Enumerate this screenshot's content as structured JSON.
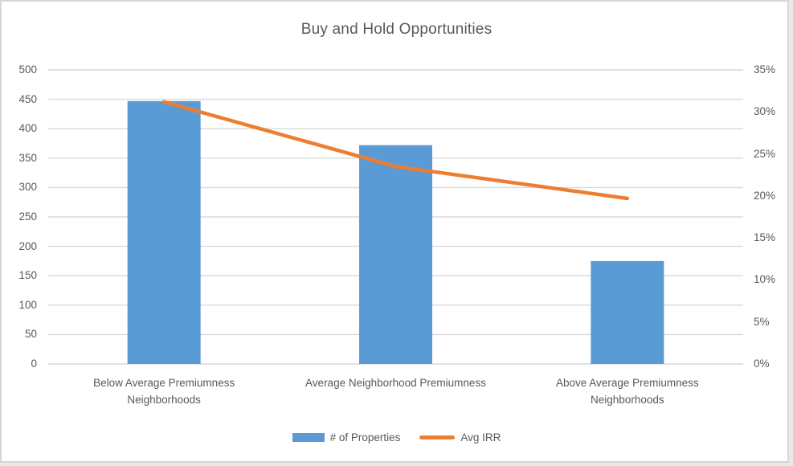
{
  "chart_data": {
    "type": "combo-bar-line",
    "title": "Buy and Hold Opportunities",
    "categories": [
      {
        "label": "Below Average Premiumness Neighborhoods",
        "lines": [
          "Below Average Premiumness",
          "Neighborhoods"
        ]
      },
      {
        "label": "Average Neighborhood Premiumness",
        "lines": [
          "Average Neighborhood Premiumness"
        ]
      },
      {
        "label": "Above Average Premiumness Neighborhoods",
        "lines": [
          "Above Average Premiumness",
          "Neighborhoods"
        ]
      }
    ],
    "series": [
      {
        "name": "# of Properties",
        "type": "bar",
        "axis": "left",
        "values": [
          447,
          372,
          175
        ],
        "color": "#5B9BD5"
      },
      {
        "name": "Avg IRR",
        "type": "line",
        "axis": "right",
        "values": [
          31.2,
          23.5,
          19.7
        ],
        "unit": "%",
        "color": "#ED7D31"
      }
    ],
    "left_axis": {
      "min": 0,
      "max": 500,
      "step": 50,
      "tick_labels": [
        "0",
        "50",
        "100",
        "150",
        "200",
        "250",
        "300",
        "350",
        "400",
        "450",
        "500"
      ]
    },
    "right_axis": {
      "min": 0,
      "max": 35,
      "step": 5,
      "tick_labels": [
        "0%",
        "5%",
        "10%",
        "15%",
        "20%",
        "25%",
        "30%",
        "35%"
      ]
    },
    "grid": true,
    "legend_position": "bottom"
  },
  "legend": {
    "items": [
      {
        "label": "# of Properties",
        "swatch": "bar-swatch-icon"
      },
      {
        "label": "Avg IRR",
        "swatch": "line-swatch-icon"
      }
    ]
  },
  "colors": {
    "bar": "#5B9BD5",
    "line": "#ED7D31",
    "text": "#595959",
    "gridline": "#D9D9D9",
    "frame_border": "#D6D6D6",
    "background": "#FFFFFF"
  }
}
